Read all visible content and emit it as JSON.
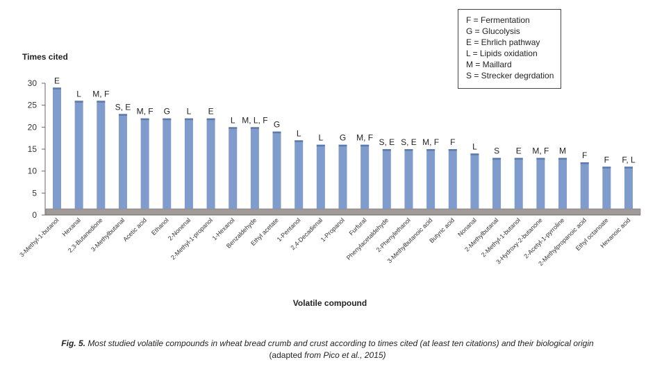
{
  "chart_data": {
    "type": "bar",
    "ylabel": "Times cited",
    "xlabel": "Volatile compound",
    "ylim": [
      0,
      30
    ],
    "yticks": [
      "0",
      "5",
      "10",
      "15",
      "20",
      "25",
      "30"
    ],
    "grid": false,
    "legend_position": "top-right",
    "bar_color": "#7f9ccc",
    "categories": [
      "3-Methyl-1-butanol",
      "Hexanal",
      "2,3-Butanedione",
      "3-Methylbutanal",
      "Acetic acid",
      "Ethanol",
      "2-Nonenal",
      "2-Methyl-1-propanol",
      "1-Hexanol",
      "Benzaldehyde",
      "Ethyl acetate",
      "1-Pentanol",
      "2,4-Decadienal",
      "1-Propanol",
      "Furfural",
      "Phenylacetaldehyde",
      "2-Phenylethanol",
      "3-Methylbutanoic acid",
      "Butyric acid",
      "Nonanal",
      "2-Methylbutanal",
      "2-Methyl-1-butanol",
      "3-Hydroxy-2-butanone",
      "2-Acetyl-1-pyrroline",
      "2-Methylpropanoic acid",
      "Ethyl octanoate",
      "Hexanoic acid"
    ],
    "values": [
      29,
      26,
      26,
      23,
      22,
      22,
      22,
      22,
      20,
      20,
      19,
      17,
      16,
      16,
      16,
      15,
      15,
      15,
      15,
      14,
      13,
      13,
      13,
      13,
      12,
      11,
      11
    ],
    "annotations": [
      "E",
      "L",
      "M, F",
      "S, E",
      "M, F",
      "G",
      "L",
      "E",
      "L",
      "M, L, F",
      "G",
      "L",
      "L",
      "G",
      "M, F",
      "S, E",
      "S, E",
      "M, F",
      "F",
      "L",
      "S",
      "E",
      "M, F",
      "M",
      "F",
      "F",
      "F, L"
    ]
  },
  "legend": {
    "items": [
      "F = Fermentation",
      "G = Glucolysis",
      "E = Ehrlich pathway",
      "L = Lipids oxidation",
      "M = Maillard",
      "S = Strecker degrdation"
    ]
  },
  "caption": {
    "label": "Fig. 5.",
    "text1": "Most studied volatile compounds in wheat bread crumb and crust according to times cited (at least ten citations) and their biological origin",
    "text2_pre": "(adapted ",
    "text2_italic": "from Pico et al., 2015)"
  },
  "colors": {
    "bar": "#7f9ccc",
    "bar_top": "#5e7aab",
    "floor": "#a09a99"
  }
}
